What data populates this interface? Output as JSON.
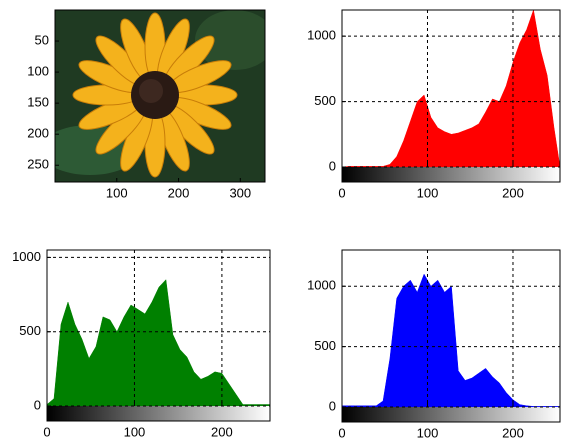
{
  "chart_data": [
    {
      "type": "image",
      "xlim": [
        0,
        340
      ],
      "ylim": [
        0,
        277
      ],
      "y_reversed": true,
      "xticks": [
        100,
        200,
        300
      ],
      "yticks": [
        50,
        100,
        150,
        200,
        250
      ]
    },
    {
      "type": "area",
      "color": "#ff0000",
      "xlim": [
        0,
        255
      ],
      "ylim": [
        0,
        1200
      ],
      "grid": true,
      "xticks": [
        0,
        100,
        200
      ],
      "yticks": [
        0,
        500,
        1000
      ],
      "x": [
        0,
        8,
        16,
        24,
        32,
        40,
        48,
        56,
        64,
        72,
        80,
        88,
        96,
        104,
        112,
        120,
        128,
        136,
        144,
        152,
        160,
        168,
        176,
        184,
        192,
        200,
        208,
        216,
        224,
        232,
        240,
        248,
        255
      ],
      "values": [
        0,
        5,
        5,
        5,
        5,
        5,
        5,
        20,
        80,
        200,
        350,
        500,
        550,
        380,
        300,
        270,
        250,
        260,
        280,
        300,
        330,
        420,
        520,
        500,
        620,
        800,
        950,
        1050,
        1200,
        900,
        700,
        300,
        0
      ]
    },
    {
      "type": "area",
      "color": "#008000",
      "xlim": [
        0,
        255
      ],
      "ylim": [
        0,
        1050
      ],
      "grid": true,
      "xticks": [
        0,
        100,
        200
      ],
      "yticks": [
        0,
        500,
        1000
      ],
      "x": [
        0,
        8,
        16,
        24,
        32,
        40,
        48,
        56,
        64,
        72,
        80,
        88,
        96,
        104,
        112,
        120,
        128,
        136,
        144,
        152,
        160,
        168,
        176,
        184,
        192,
        200,
        208,
        216,
        224,
        232,
        240,
        248,
        255
      ],
      "values": [
        10,
        50,
        550,
        700,
        550,
        450,
        320,
        400,
        600,
        580,
        500,
        600,
        680,
        650,
        620,
        700,
        800,
        850,
        480,
        380,
        330,
        230,
        180,
        200,
        230,
        220,
        150,
        80,
        10,
        10,
        10,
        10,
        10
      ]
    },
    {
      "type": "area",
      "color": "#0000ff",
      "xlim": [
        0,
        255
      ],
      "ylim": [
        0,
        1300
      ],
      "grid": true,
      "xticks": [
        0,
        100,
        200
      ],
      "yticks": [
        0,
        500,
        1000
      ],
      "x": [
        0,
        8,
        16,
        24,
        32,
        40,
        48,
        56,
        64,
        72,
        80,
        88,
        96,
        104,
        112,
        120,
        128,
        136,
        144,
        152,
        160,
        168,
        176,
        184,
        192,
        200,
        208,
        216,
        224,
        232,
        240,
        248,
        255
      ],
      "values": [
        10,
        10,
        10,
        10,
        10,
        10,
        50,
        400,
        900,
        1000,
        1050,
        950,
        1100,
        1000,
        1050,
        950,
        1000,
        300,
        220,
        240,
        280,
        320,
        250,
        200,
        120,
        60,
        20,
        10,
        5,
        5,
        5,
        5,
        5
      ]
    }
  ]
}
